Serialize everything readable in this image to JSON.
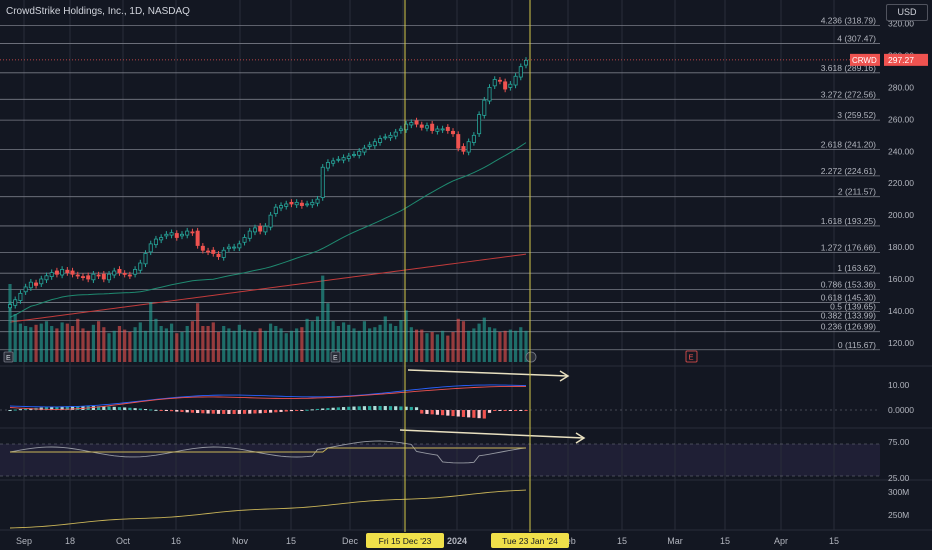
{
  "header": {
    "title": "CrowdStrike Holdings, Inc., 1D, NASDAQ",
    "currency": "USD"
  },
  "colors": {
    "bg": "#131722",
    "grid": "#2a2e39",
    "up": "#26a69a",
    "down": "#ef5350",
    "fib": "#787b86",
    "vline": "#d4c94a",
    "sma50": "#1f8a70",
    "sma200": "#c23b3b",
    "text": "#d1d4dc",
    "muted": "#b2b5be",
    "arrow": "#e8e0c0"
  },
  "chart_data": [
    {
      "type": "candlestick",
      "ticker": "CRWD",
      "last_price": "297.27",
      "ylim": [
        108,
        326
      ],
      "y_ticks": [
        120,
        140,
        160,
        180,
        200,
        220,
        240,
        260,
        280,
        300,
        320
      ],
      "y_tick_labels": [
        "120.00",
        "140.00",
        "160.00",
        "180.00",
        "200.00",
        "220.00",
        "240.00",
        "260.00",
        "280.00",
        "300.00",
        "320.00"
      ],
      "x_tick_labels": [
        "Sep",
        "18",
        "Oct",
        "16",
        "Nov",
        "15",
        "Dec",
        "",
        "2024",
        "",
        "Feb",
        "15",
        "Mar",
        "15",
        "Apr",
        "15"
      ],
      "date_tags": [
        "Fri 15 Dec '23",
        "Tue 23 Jan '24"
      ],
      "fib_levels": [
        {
          "ratio": "4.236",
          "value": 318.79,
          "label": "4.236 (318.79)"
        },
        {
          "ratio": "4",
          "value": 307.47,
          "label": "4 (307.47)"
        },
        {
          "ratio": "3.618",
          "value": 289.16,
          "label": "3.618 (289.16)"
        },
        {
          "ratio": "3.272",
          "value": 272.56,
          "label": "3.272 (272.56)"
        },
        {
          "ratio": "3",
          "value": 259.52,
          "label": "3 (259.52)"
        },
        {
          "ratio": "2.618",
          "value": 241.2,
          "label": "2.618 (241.20)"
        },
        {
          "ratio": "2.272",
          "value": 224.61,
          "label": "2.272 (224.61)"
        },
        {
          "ratio": "2",
          "value": 211.57,
          "label": "2 (211.57)"
        },
        {
          "ratio": "1.618",
          "value": 193.25,
          "label": "1.618 (193.25)"
        },
        {
          "ratio": "1.272",
          "value": 176.66,
          "label": "1.272 (176.66)"
        },
        {
          "ratio": "1",
          "value": 163.62,
          "label": "1 (163.62)"
        },
        {
          "ratio": "0.786",
          "value": 153.36,
          "label": "0.786 (153.36)"
        },
        {
          "ratio": "0.618",
          "value": 145.3,
          "label": "0.618 (145.30)"
        },
        {
          "ratio": "0.5",
          "value": 139.65,
          "label": "0.5 (139.65)"
        },
        {
          "ratio": "0.382",
          "value": 133.99,
          "label": "0.382 (133.99)"
        },
        {
          "ratio": "0.236",
          "value": 126.99,
          "label": "0.236 (126.99)"
        },
        {
          "ratio": "0",
          "value": 115.67,
          "label": "0 (115.67)"
        }
      ],
      "closes": [
        144,
        147,
        151,
        155,
        158,
        156,
        160,
        162,
        164,
        163,
        166,
        164,
        163,
        162,
        161,
        160,
        163,
        162,
        160,
        163,
        165,
        164,
        163,
        162,
        166,
        170,
        176,
        182,
        185,
        186,
        188,
        189,
        186,
        188,
        190,
        189,
        181,
        178,
        177,
        176,
        174,
        178,
        180,
        180,
        182,
        186,
        190,
        192,
        190,
        193,
        200,
        205,
        206,
        207,
        207,
        208,
        206,
        207,
        208,
        210,
        230,
        233,
        234,
        235,
        236,
        237,
        238,
        240,
        242,
        244,
        246,
        248,
        249,
        250,
        252,
        254,
        257,
        258,
        257,
        255,
        256,
        253,
        254,
        254,
        253,
        251,
        242,
        240,
        246,
        250,
        263,
        272,
        280,
        285,
        284,
        279,
        282,
        287,
        293,
        297
      ]
    },
    {
      "type": "bar",
      "name": "Volume",
      "values": [
        6.5,
        4.0,
        3.2,
        3.0,
        2.9,
        3.1,
        3.2,
        3.4,
        3.0,
        2.8,
        3.3,
        3.2,
        3.0,
        3.6,
        2.8,
        2.6,
        3.1,
        3.4,
        2.9,
        2.4,
        2.6,
        3.0,
        2.7,
        2.5,
        2.9,
        3.3,
        2.6,
        5.0,
        3.6,
        3.0,
        2.8,
        3.2,
        2.4,
        2.5,
        3.0,
        3.4,
        4.9,
        3.0,
        3.0,
        3.3,
        2.5,
        3.0,
        2.8,
        2.6,
        3.1,
        2.7,
        2.6,
        2.5,
        2.8,
        2.6,
        3.2,
        3.0,
        2.8,
        2.4,
        2.6,
        2.8,
        2.9,
        3.6,
        3.4,
        3.8,
        7.2,
        4.9,
        3.4,
        3.0,
        3.3,
        3.1,
        2.8,
        2.6,
        3.4,
        2.8,
        2.9,
        3.1,
        3.8,
        3.2,
        3.0,
        3.5,
        4.3,
        2.9,
        2.7,
        2.7,
        2.4,
        2.5,
        2.3,
        2.6,
        2.2,
        2.5,
        3.6,
        3.4,
        2.6,
        2.8,
        3.2,
        3.7,
        2.9,
        2.8,
        2.5,
        2.6,
        2.7,
        2.6,
        2.9,
        2.6
      ]
    },
    {
      "type": "histogram",
      "name": "MACD",
      "y_ticks": [
        "10.00",
        "0.0000"
      ]
    },
    {
      "type": "line",
      "name": "RSI",
      "y_ticks": [
        "75.00",
        "25.00"
      ]
    },
    {
      "type": "line",
      "name": "OBV",
      "y_ticks": [
        "300M",
        "250M"
      ]
    }
  ]
}
